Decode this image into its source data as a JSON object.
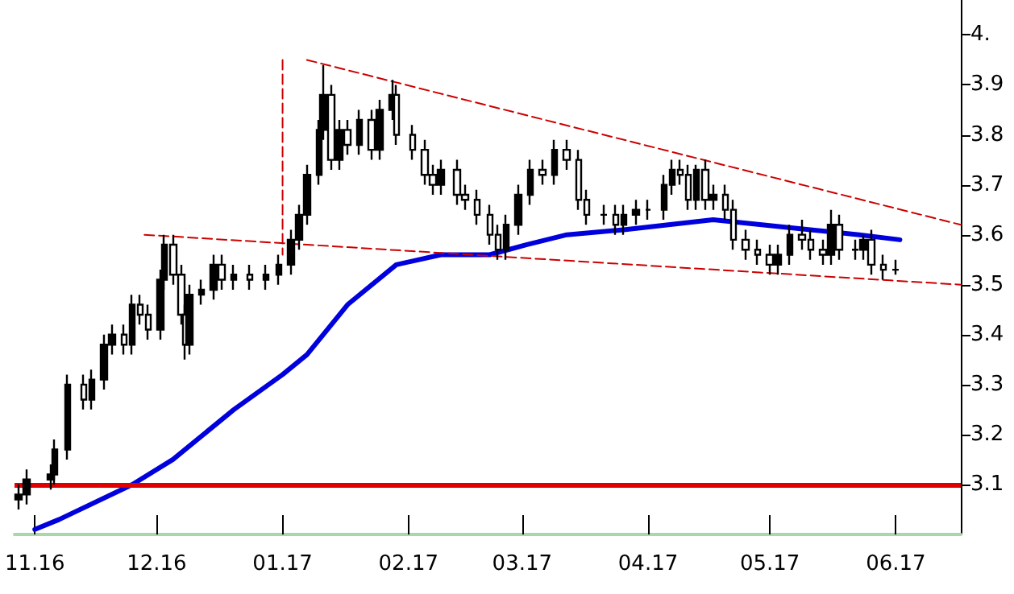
{
  "chart_data": {
    "type": "candlestick",
    "color": "#000000",
    "marker": "none",
    "grid": false,
    "x": [
      "2016-10-28",
      "2016-10-30",
      "2016-11-05",
      "2016-11-06",
      "2016-11-09",
      "2016-11-13",
      "2016-11-15",
      "2016-11-18",
      "2016-11-20",
      "2016-11-23",
      "2016-11-25",
      "2016-11-27",
      "2016-11-29",
      "2016-12-02",
      "2016-12-03",
      "2016-12-05",
      "2016-12-07",
      "2016-12-08",
      "2016-12-09",
      "2016-12-12",
      "2016-12-15",
      "2016-12-17",
      "2016-12-20",
      "2016-12-24",
      "2016-12-28",
      "2016-12-31",
      "2017-01-03",
      "2017-01-05",
      "2017-01-07",
      "2017-01-10",
      "2017-01-11",
      "2017-01-13",
      "2017-01-15",
      "2017-01-17",
      "2017-01-20",
      "2017-01-23",
      "2017-01-25",
      "2017-01-28",
      "2017-01-29",
      "2017-02-02",
      "2017-02-05",
      "2017-02-07",
      "2017-02-09",
      "2017-02-13",
      "2017-02-15",
      "2017-02-18",
      "2017-02-21",
      "2017-02-23",
      "2017-02-25",
      "2017-02-28",
      "2017-03-03",
      "2017-03-06",
      "2017-03-09",
      "2017-03-12",
      "2017-03-15",
      "2017-03-17",
      "2017-03-21",
      "2017-03-24",
      "2017-03-26",
      "2017-03-29",
      "2017-04-01",
      "2017-04-05",
      "2017-04-07",
      "2017-04-09",
      "2017-04-11",
      "2017-04-13",
      "2017-04-15",
      "2017-04-17",
      "2017-04-20",
      "2017-04-22",
      "2017-04-25",
      "2017-04-28",
      "2017-05-01",
      "2017-05-03",
      "2017-05-06",
      "2017-05-09",
      "2017-05-11",
      "2017-05-14",
      "2017-05-16",
      "2017-05-18",
      "2017-05-22",
      "2017-05-24",
      "2017-05-26",
      "2017-05-29",
      "2017-06-01"
    ],
    "ohlc": [
      [
        3.07,
        3.1,
        3.05,
        3.08
      ],
      [
        3.08,
        3.13,
        3.06,
        3.11
      ],
      [
        3.11,
        3.14,
        3.09,
        3.12
      ],
      [
        3.12,
        3.19,
        3.1,
        3.17
      ],
      [
        3.17,
        3.32,
        3.15,
        3.3
      ],
      [
        3.3,
        3.32,
        3.25,
        3.27
      ],
      [
        3.27,
        3.33,
        3.25,
        3.31
      ],
      [
        3.31,
        3.4,
        3.29,
        3.38
      ],
      [
        3.38,
        3.42,
        3.36,
        3.4
      ],
      [
        3.4,
        3.42,
        3.36,
        3.38
      ],
      [
        3.38,
        3.48,
        3.36,
        3.46
      ],
      [
        3.46,
        3.48,
        3.42,
        3.44
      ],
      [
        3.44,
        3.46,
        3.39,
        3.41
      ],
      [
        3.41,
        3.53,
        3.39,
        3.51
      ],
      [
        3.51,
        3.6,
        3.49,
        3.58
      ],
      [
        3.58,
        3.6,
        3.5,
        3.52
      ],
      [
        3.52,
        3.54,
        3.42,
        3.44
      ],
      [
        3.44,
        3.46,
        3.35,
        3.38
      ],
      [
        3.38,
        3.5,
        3.36,
        3.48
      ],
      [
        3.48,
        3.51,
        3.46,
        3.49
      ],
      [
        3.49,
        3.56,
        3.47,
        3.54
      ],
      [
        3.54,
        3.56,
        3.49,
        3.51
      ],
      [
        3.51,
        3.54,
        3.49,
        3.52
      ],
      [
        3.52,
        3.54,
        3.49,
        3.51
      ],
      [
        3.51,
        3.54,
        3.49,
        3.52
      ],
      [
        3.52,
        3.56,
        3.5,
        3.54
      ],
      [
        3.54,
        3.61,
        3.52,
        3.59
      ],
      [
        3.59,
        3.66,
        3.57,
        3.64
      ],
      [
        3.64,
        3.74,
        3.62,
        3.72
      ],
      [
        3.72,
        3.83,
        3.7,
        3.81
      ],
      [
        3.81,
        3.94,
        3.79,
        3.88
      ],
      [
        3.88,
        3.9,
        3.73,
        3.75
      ],
      [
        3.75,
        3.83,
        3.73,
        3.81
      ],
      [
        3.81,
        3.83,
        3.76,
        3.78
      ],
      [
        3.78,
        3.85,
        3.76,
        3.83
      ],
      [
        3.83,
        3.85,
        3.75,
        3.77
      ],
      [
        3.77,
        3.87,
        3.75,
        3.85
      ],
      [
        3.85,
        3.91,
        3.83,
        3.88
      ],
      [
        3.88,
        3.9,
        3.78,
        3.8
      ],
      [
        3.8,
        3.82,
        3.75,
        3.77
      ],
      [
        3.77,
        3.79,
        3.7,
        3.72
      ],
      [
        3.72,
        3.74,
        3.68,
        3.7
      ],
      [
        3.7,
        3.75,
        3.68,
        3.73
      ],
      [
        3.73,
        3.75,
        3.66,
        3.68
      ],
      [
        3.68,
        3.7,
        3.65,
        3.67
      ],
      [
        3.67,
        3.69,
        3.62,
        3.64
      ],
      [
        3.64,
        3.66,
        3.58,
        3.6
      ],
      [
        3.6,
        3.62,
        3.55,
        3.57
      ],
      [
        3.57,
        3.64,
        3.55,
        3.62
      ],
      [
        3.62,
        3.7,
        3.6,
        3.68
      ],
      [
        3.68,
        3.75,
        3.66,
        3.73
      ],
      [
        3.73,
        3.75,
        3.7,
        3.72
      ],
      [
        3.72,
        3.79,
        3.7,
        3.77
      ],
      [
        3.77,
        3.79,
        3.73,
        3.75
      ],
      [
        3.75,
        3.77,
        3.65,
        3.67
      ],
      [
        3.67,
        3.69,
        3.62,
        3.64
      ],
      [
        3.64,
        3.66,
        3.62,
        3.64
      ],
      [
        3.64,
        3.66,
        3.6,
        3.62
      ],
      [
        3.62,
        3.66,
        3.6,
        3.64
      ],
      [
        3.64,
        3.67,
        3.62,
        3.65
      ],
      [
        3.65,
        3.67,
        3.63,
        3.65
      ],
      [
        3.65,
        3.72,
        3.63,
        3.7
      ],
      [
        3.7,
        3.75,
        3.68,
        3.73
      ],
      [
        3.73,
        3.75,
        3.7,
        3.72
      ],
      [
        3.72,
        3.74,
        3.65,
        3.67
      ],
      [
        3.67,
        3.74,
        3.65,
        3.73
      ],
      [
        3.73,
        3.75,
        3.65,
        3.67
      ],
      [
        3.67,
        3.7,
        3.65,
        3.68
      ],
      [
        3.68,
        3.7,
        3.63,
        3.65
      ],
      [
        3.65,
        3.67,
        3.57,
        3.59
      ],
      [
        3.59,
        3.61,
        3.55,
        3.57
      ],
      [
        3.57,
        3.59,
        3.54,
        3.56
      ],
      [
        3.56,
        3.58,
        3.52,
        3.54
      ],
      [
        3.54,
        3.58,
        3.52,
        3.56
      ],
      [
        3.56,
        3.62,
        3.54,
        3.6
      ],
      [
        3.6,
        3.63,
        3.57,
        3.59
      ],
      [
        3.59,
        3.61,
        3.55,
        3.57
      ],
      [
        3.57,
        3.59,
        3.54,
        3.56
      ],
      [
        3.56,
        3.65,
        3.54,
        3.62
      ],
      [
        3.62,
        3.64,
        3.55,
        3.57
      ],
      [
        3.57,
        3.59,
        3.55,
        3.57
      ],
      [
        3.57,
        3.6,
        3.55,
        3.59
      ],
      [
        3.59,
        3.61,
        3.52,
        3.54
      ],
      [
        3.54,
        3.56,
        3.51,
        3.53
      ],
      [
        3.53,
        3.55,
        3.52,
        3.53
      ]
    ],
    "series": [
      {
        "type": "line",
        "color": "#0000dd",
        "line_style": "solid",
        "x": [
          "2016-11-01",
          "2016-11-07",
          "2016-11-25",
          "2016-12-05",
          "2016-12-20",
          "2017-01-01",
          "2017-01-07",
          "2017-01-17",
          "2017-01-29",
          "2017-02-09",
          "2017-02-21",
          "2017-03-02",
          "2017-03-12",
          "2017-03-26",
          "2017-04-06",
          "2017-04-17",
          "2017-04-29",
          "2017-05-11",
          "2017-05-23",
          "2017-06-02"
        ],
        "values": [
          3.01,
          3.03,
          3.1,
          3.15,
          3.25,
          3.32,
          3.36,
          3.46,
          3.54,
          3.56,
          3.56,
          3.58,
          3.6,
          3.61,
          3.62,
          3.63,
          3.62,
          3.61,
          3.6,
          3.59
        ]
      },
      {
        "type": "line",
        "color": "#cc0000",
        "line_style": "dashed",
        "x": [
          "2017-01-07",
          "2017-06-17"
        ],
        "values": [
          3.95,
          3.62
        ]
      },
      {
        "type": "line",
        "color": "#cc0000",
        "line_style": "dashed",
        "x": [
          "2016-11-28",
          "2017-06-17"
        ],
        "values": [
          3.6,
          3.5
        ]
      },
      {
        "type": "line",
        "color": "#cc0000",
        "line_style": "dashed",
        "x": [
          "2017-01-01",
          "2017-01-01"
        ],
        "values": [
          3.95,
          3.56
        ]
      }
    ],
    "ref_lines": [
      {
        "axis": "y",
        "value": 3.1,
        "color": "#e00000",
        "line_style": "solid"
      }
    ],
    "xlim": [
      "2016-10-27",
      "2017-06-17"
    ],
    "xticks": [
      {
        "value": "2016-11-01",
        "label": "11.16"
      },
      {
        "value": "2016-12-01",
        "label": "12.16"
      },
      {
        "value": "2017-01-01",
        "label": "01.17"
      },
      {
        "value": "2017-02-01",
        "label": "02.17"
      },
      {
        "value": "2017-03-01",
        "label": "03.17"
      },
      {
        "value": "2017-04-01",
        "label": "04.17"
      },
      {
        "value": "2017-05-01",
        "label": "05.17"
      },
      {
        "value": "2017-06-01",
        "label": "06.17"
      }
    ],
    "ylim": [
      3.0,
      4.07
    ],
    "yticks": [
      3.1,
      3.2,
      3.3,
      3.4,
      3.5,
      3.6,
      3.7,
      3.8,
      3.9,
      {
        "value": 4.0,
        "label": "4."
      }
    ]
  }
}
